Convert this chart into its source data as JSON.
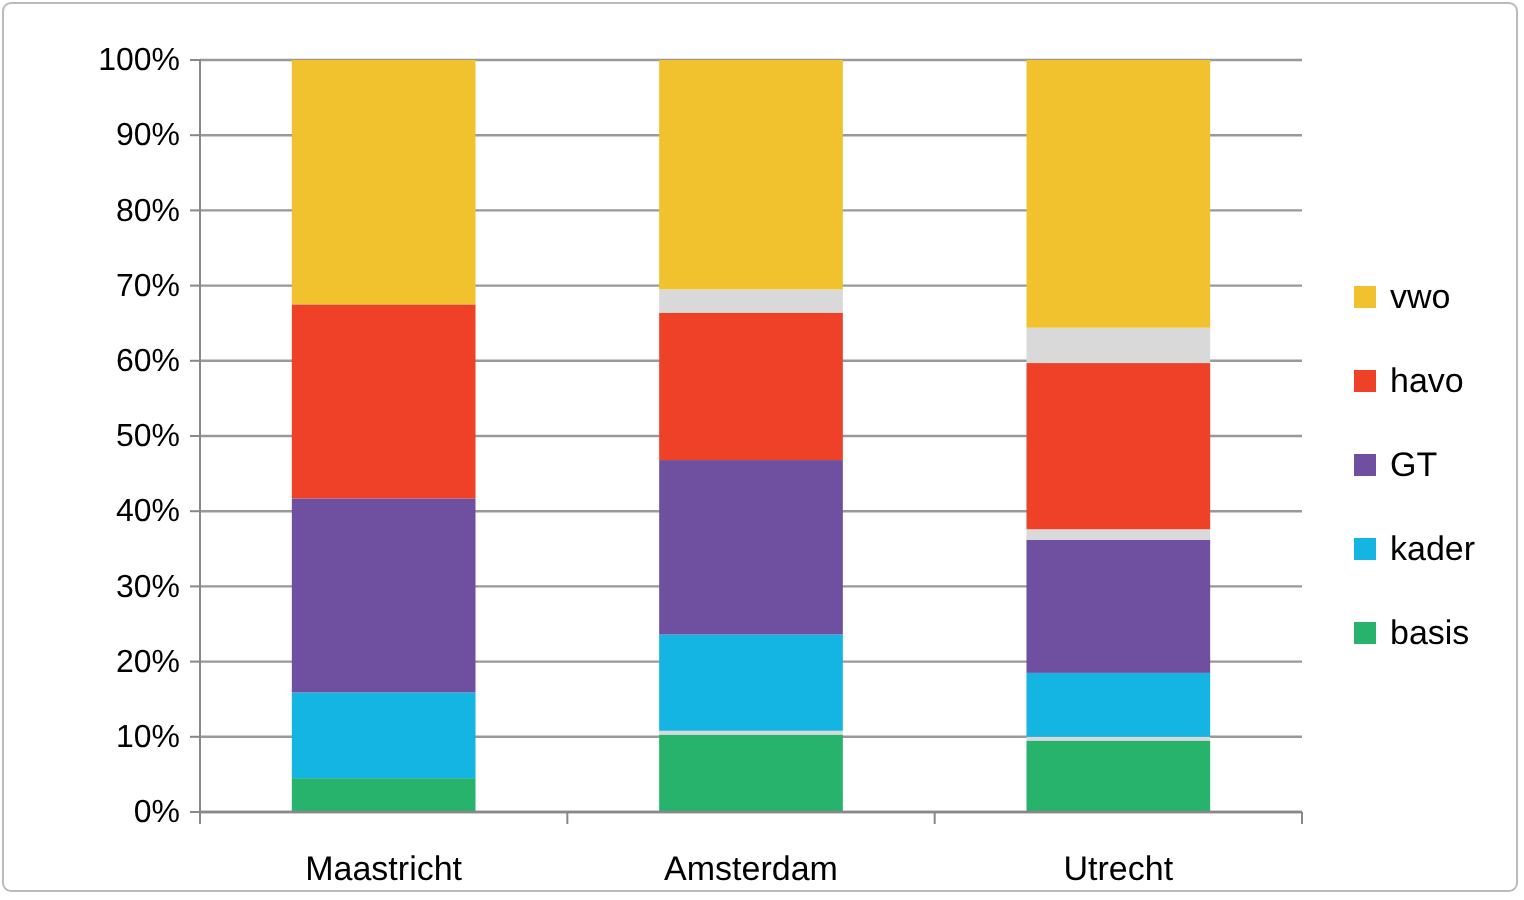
{
  "chart_data": {
    "type": "bar",
    "stacked": true,
    "categories": [
      "Maastricht",
      "Amsterdam",
      "Utrecht"
    ],
    "series": [
      {
        "name": "basis",
        "color": "#27b36b",
        "values": [
          4.5,
          10.3,
          9.5
        ]
      },
      {
        "color": "#d9d9d9",
        "values": [
          null,
          0.5,
          0.5
        ]
      },
      {
        "name": "kader",
        "color": "#14b5e2",
        "values": [
          11.4,
          12.8,
          8.5
        ]
      },
      {
        "name": "GT",
        "color": "#6f4f9f",
        "values": [
          25.8,
          23.2,
          17.7
        ]
      },
      {
        "color": "#d9d9d9",
        "values": [
          null,
          null,
          1.4
        ]
      },
      {
        "name": "havo",
        "color": "#ef4128",
        "values": [
          25.8,
          19.6,
          22.1
        ]
      },
      {
        "color": "#d9d9d9",
        "values": [
          null,
          3.1,
          4.7
        ]
      },
      {
        "name": "vwo",
        "color": "#f1c12e",
        "values": [
          32.5,
          30.5,
          35.6
        ]
      }
    ],
    "ylim": [
      0,
      100
    ],
    "yticks": [
      {
        "value": 0,
        "label": "0%"
      },
      {
        "value": 10,
        "label": "10%"
      },
      {
        "value": 20,
        "label": "20%"
      },
      {
        "value": 30,
        "label": "30%"
      },
      {
        "value": 40,
        "label": "40%"
      },
      {
        "value": 50,
        "label": "50%"
      },
      {
        "value": 60,
        "label": "60%"
      },
      {
        "value": 70,
        "label": "70%"
      },
      {
        "value": 80,
        "label": "80%"
      },
      {
        "value": 90,
        "label": "90%"
      },
      {
        "value": 100,
        "label": "100%"
      }
    ],
    "grid": "y",
    "legend": "right"
  }
}
